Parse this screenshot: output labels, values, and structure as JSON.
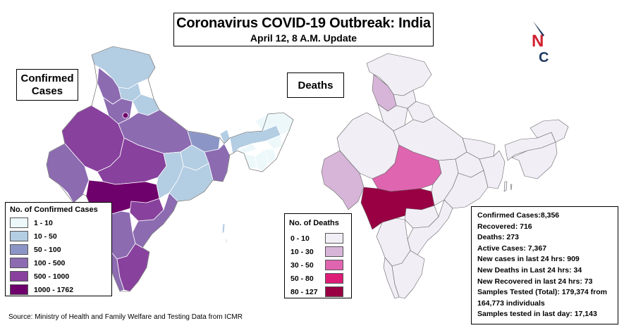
{
  "header": {
    "title": "Coronavirus COVID-19 Outbreak: India",
    "subtitle": "April 12, 8 A.M. Update"
  },
  "maps": {
    "confirmed_label": [
      "Confirmed",
      "Cases"
    ],
    "deaths_label": "Deaths"
  },
  "confirmed_legend": {
    "title": "No. of Confirmed Cases",
    "items": [
      {
        "label": "1 - 10",
        "color": "#edf8fb"
      },
      {
        "label": "10 - 50",
        "color": "#b3cde3"
      },
      {
        "label": "50 - 100",
        "color": "#8c96c6"
      },
      {
        "label": "100 - 500",
        "color": "#8c6bb1"
      },
      {
        "label": "500 - 1000",
        "color": "#88419d"
      },
      {
        "label": "1000 - 1762",
        "color": "#6e016b"
      }
    ]
  },
  "deaths_legend": {
    "title": "No. of Deaths",
    "items": [
      {
        "label": "0 - 10",
        "color": "#f1eef6"
      },
      {
        "label": "10 - 30",
        "color": "#d7b5d8"
      },
      {
        "label": "30 - 50",
        "color": "#df65b0"
      },
      {
        "label": "50 - 80",
        "color": "#dd1c77"
      },
      {
        "label": "80 - 127",
        "color": "#980043"
      }
    ]
  },
  "stats": [
    "Confirmed Cases:8,356",
    "Recovered: 716",
    "Deaths: 273",
    "Active Cases: 7,367",
    "New cases in last 24 hrs: 909",
    "New Deaths in Last 24 hrs: 34",
    "New Recovered in last 24 hrs: 73",
    "Samples Tested (Total):   179,374 from 164,773 individuals",
    "Samples tested in last day: 17,143"
  ],
  "source": "Source: Ministry of Health and Family Welfare and Testing Data from ICMR",
  "logo": {
    "letters": [
      "N",
      "C"
    ],
    "colors": {
      "navy": "#1f3a5f",
      "red": "#d0202e"
    }
  }
}
